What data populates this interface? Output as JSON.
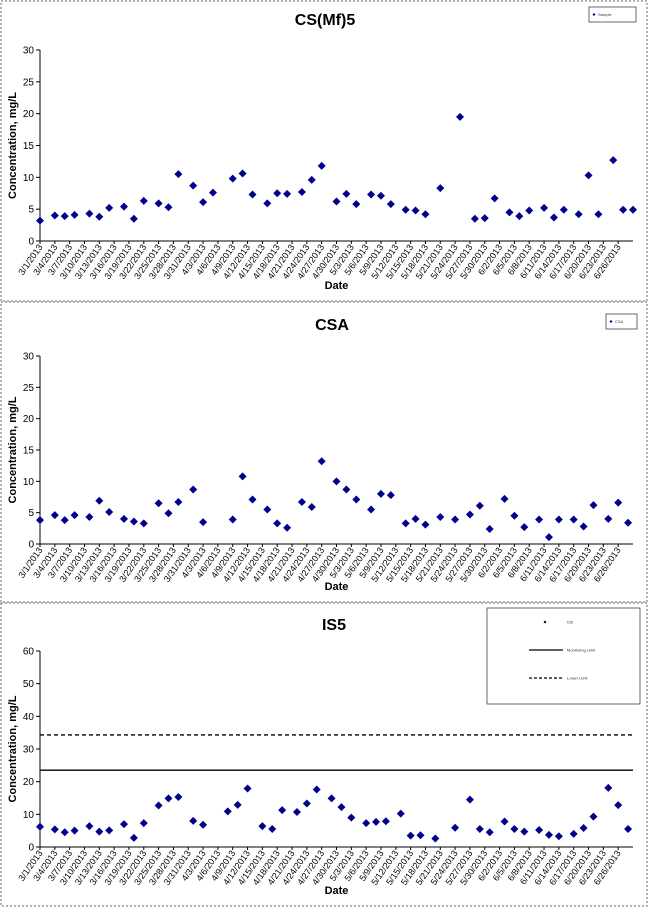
{
  "chart_data": [
    {
      "type": "scatter",
      "title": "CS(Mf)5",
      "ylabel": "Concentration, mg/L",
      "xlabel": "Date",
      "ylim": [
        0,
        30
      ],
      "yticks": [
        0,
        5,
        10,
        15,
        20,
        25,
        30
      ],
      "legend": {
        "placement": "top-right",
        "entries": [
          "Sample"
        ]
      },
      "marker_color": "#00008B",
      "x": [
        "3/1/2013",
        "3/4/2013",
        "3/6/2013",
        "3/8/2013",
        "3/11/2013",
        "3/13/2013",
        "3/15/2013",
        "3/18/2013",
        "3/20/2013",
        "3/22/2013",
        "3/25/2013",
        "3/27/2013",
        "3/29/2013",
        "4/1/2013",
        "4/3/2013",
        "4/5/2013",
        "4/9/2013",
        "4/11/2013",
        "4/13/2013",
        "4/16/2013",
        "4/18/2013",
        "4/20/2013",
        "4/23/2013",
        "4/25/2013",
        "4/27/2013",
        "4/30/2013",
        "5/2/2013",
        "5/4/2013",
        "5/7/2013",
        "5/9/2013",
        "5/11/2013",
        "5/14/2013",
        "5/16/2013",
        "5/18/2013",
        "5/21/2013",
        "5/25/2013",
        "5/28/2013",
        "5/30/2013",
        "6/1/2013",
        "6/4/2013",
        "6/6/2013",
        "6/8/2013",
        "6/11/2013",
        "6/13/2013",
        "6/15/2013",
        "6/18/2013",
        "6/20/2013",
        "6/22/2013",
        "6/25/2013",
        "6/27/2013",
        "6/29/2013"
      ],
      "y": [
        3.2,
        4.0,
        3.9,
        4.1,
        4.3,
        3.8,
        5.2,
        5.4,
        3.5,
        6.3,
        5.9,
        5.3,
        10.5,
        8.7,
        6.1,
        7.6,
        9.8,
        10.6,
        7.3,
        5.9,
        7.5,
        7.4,
        7.7,
        9.6,
        11.8,
        6.2,
        7.4,
        5.8,
        7.3,
        7.1,
        5.8,
        4.9,
        4.8,
        4.2,
        8.3,
        19.5,
        3.5,
        3.6,
        6.7,
        4.5,
        3.9,
        4.8,
        5.2,
        3.7,
        4.9,
        4.2,
        10.3,
        4.2,
        12.7,
        4.9,
        4.9
      ],
      "x_tick_labels": [
        "3/1/2013",
        "3/4/2013",
        "3/7/2013",
        "3/10/2013",
        "3/13/2013",
        "3/16/2013",
        "3/19/2013",
        "3/22/2013",
        "3/25/2013",
        "3/28/2013",
        "3/31/2013",
        "4/3/2013",
        "4/6/2013",
        "4/9/2013",
        "4/12/2013",
        "4/15/2013",
        "4/18/2013",
        "4/21/2013",
        "4/24/2013",
        "4/27/2013",
        "4/30/2013",
        "5/3/2013",
        "5/6/2013",
        "5/9/2013",
        "5/12/2013",
        "5/15/2013",
        "5/18/2013",
        "5/21/2013",
        "5/24/2013",
        "5/27/2013",
        "5/30/2013",
        "6/2/2013",
        "6/5/2013",
        "6/8/2013",
        "6/11/2013",
        "6/14/2013",
        "6/17/2013",
        "6/20/2013",
        "6/23/2013",
        "6/26/2013"
      ]
    },
    {
      "type": "scatter",
      "title": "CSA",
      "ylabel": "Concentration, mg/L",
      "xlabel": "Date",
      "ylim": [
        0,
        30
      ],
      "yticks": [
        0,
        5,
        10,
        15,
        20,
        25,
        30
      ],
      "legend": {
        "placement": "top-right",
        "entries": [
          "CSA"
        ]
      },
      "marker_color": "#00008B",
      "x": [
        "3/1/2013",
        "3/4/2013",
        "3/6/2013",
        "3/8/2013",
        "3/11/2013",
        "3/13/2013",
        "3/15/2013",
        "3/18/2013",
        "3/20/2013",
        "3/22/2013",
        "3/25/2013",
        "3/27/2013",
        "3/29/2013",
        "4/1/2013",
        "4/3/2013",
        "4/9/2013",
        "4/11/2013",
        "4/13/2013",
        "4/16/2013",
        "4/18/2013",
        "4/20/2013",
        "4/23/2013",
        "4/25/2013",
        "4/27/2013",
        "4/30/2013",
        "5/2/2013",
        "5/4/2013",
        "5/7/2013",
        "5/9/2013",
        "5/11/2013",
        "5/14/2013",
        "5/16/2013",
        "5/18/2013",
        "5/21/2013",
        "5/24/2013",
        "5/27/2013",
        "5/29/2013",
        "5/31/2013",
        "6/3/2013",
        "6/5/2013",
        "6/7/2013",
        "6/10/2013",
        "6/12/2013",
        "6/14/2013",
        "6/17/2013",
        "6/19/2013",
        "6/21/2013",
        "6/24/2013",
        "6/26/2013",
        "6/28/2013"
      ],
      "y": [
        3.8,
        4.6,
        3.8,
        4.6,
        4.3,
        6.9,
        5.1,
        4.0,
        3.6,
        3.3,
        6.5,
        4.9,
        6.7,
        8.7,
        3.5,
        3.9,
        10.8,
        7.1,
        5.5,
        3.3,
        2.6,
        6.7,
        5.9,
        13.2,
        10.0,
        8.7,
        7.1,
        5.5,
        8.0,
        7.8,
        3.3,
        4.0,
        3.1,
        4.3,
        3.9,
        4.7,
        6.1,
        2.4,
        7.2,
        4.5,
        2.7,
        3.9,
        1.1,
        3.9,
        3.9,
        2.8,
        6.2,
        4.0,
        6.6,
        3.4
      ],
      "x_tick_labels": [
        "3/1/2013",
        "3/4/2013",
        "3/7/2013",
        "3/10/2013",
        "3/13/2013",
        "3/16/2013",
        "3/19/2013",
        "3/22/2013",
        "3/25/2013",
        "3/28/2013",
        "3/31/2013",
        "4/3/2013",
        "4/6/2013",
        "4/9/2013",
        "4/12/2013",
        "4/15/2013",
        "4/18/2013",
        "4/21/2013",
        "4/24/2013",
        "4/27/2013",
        "4/30/2013",
        "5/3/2013",
        "5/6/2013",
        "5/9/2013",
        "5/12/2013",
        "5/15/2013",
        "5/18/2013",
        "5/21/2013",
        "5/24/2013",
        "5/27/2013",
        "5/30/2013",
        "6/2/2013",
        "6/5/2013",
        "6/8/2013",
        "6/11/2013",
        "6/14/2013",
        "6/17/2013",
        "6/20/2013",
        "6/23/2013",
        "6/26/2013"
      ]
    },
    {
      "type": "scatter",
      "title": "IS5",
      "ylabel": "Concentration, mg/L",
      "xlabel": "Date",
      "ylim": [
        0,
        60
      ],
      "yticks": [
        0,
        10,
        20,
        30,
        40,
        50,
        60
      ],
      "legend": {
        "placement": "top-right",
        "entries": [
          "IS5",
          "Monitoring Limit",
          "Lower Limit"
        ]
      },
      "marker_color": "#00008B",
      "reference_lines": [
        {
          "name": "Monitoring Limit",
          "value": 23.5,
          "style": "solid"
        },
        {
          "name": "Lower Limit",
          "value": 34.3,
          "style": "dashed"
        }
      ],
      "x": [
        "3/1/2013",
        "3/4/2013",
        "3/6/2013",
        "3/8/2013",
        "3/11/2013",
        "3/13/2013",
        "3/15/2013",
        "3/18/2013",
        "3/20/2013",
        "3/22/2013",
        "3/25/2013",
        "3/27/2013",
        "3/29/2013",
        "4/1/2013",
        "4/3/2013",
        "4/8/2013",
        "4/10/2013",
        "4/12/2013",
        "4/15/2013",
        "4/17/2013",
        "4/19/2013",
        "4/22/2013",
        "4/24/2013",
        "4/26/2013",
        "4/29/2013",
        "5/1/2013",
        "5/3/2013",
        "5/6/2013",
        "5/8/2013",
        "5/10/2013",
        "5/13/2013",
        "5/15/2013",
        "5/17/2013",
        "5/20/2013",
        "5/24/2013",
        "5/27/2013",
        "5/29/2013",
        "5/31/2013",
        "6/3/2013",
        "6/5/2013",
        "6/7/2013",
        "6/10/2013",
        "6/12/2013",
        "6/14/2013",
        "6/17/2013",
        "6/19/2013",
        "6/21/2013",
        "6/24/2013",
        "6/26/2013",
        "6/28/2013"
      ],
      "y": [
        6.2,
        5.4,
        4.5,
        5.0,
        6.4,
        4.7,
        5.1,
        7.0,
        2.8,
        7.3,
        12.7,
        14.9,
        15.3,
        8.0,
        6.8,
        10.9,
        12.9,
        17.9,
        6.4,
        5.5,
        11.3,
        10.7,
        13.3,
        17.6,
        14.9,
        12.2,
        9.0,
        7.3,
        7.7,
        7.9,
        10.2,
        3.5,
        3.6,
        2.6,
        5.9,
        14.5,
        5.5,
        4.5,
        7.8,
        5.5,
        4.7,
        5.2,
        3.7,
        3.3,
        4.0,
        5.8,
        9.3,
        18.1,
        12.8,
        5.5
      ],
      "x_tick_labels": [
        "3/1/2013",
        "3/4/2013",
        "3/7/2013",
        "3/10/2013",
        "3/13/2013",
        "3/16/2013",
        "3/19/2013",
        "3/22/2013",
        "3/25/2013",
        "3/28/2013",
        "3/31/2013",
        "4/3/2013",
        "4/6/2013",
        "4/9/2013",
        "4/12/2013",
        "4/15/2013",
        "4/18/2013",
        "4/21/2013",
        "4/24/2013",
        "4/27/2013",
        "4/30/2013",
        "5/3/2013",
        "5/6/2013",
        "5/9/2013",
        "5/12/2013",
        "5/15/2013",
        "5/18/2013",
        "5/21/2013",
        "5/24/2013",
        "5/27/2013",
        "5/30/2013",
        "6/2/2013",
        "6/5/2013",
        "6/8/2013",
        "6/11/2013",
        "6/14/2013",
        "6/17/2013",
        "6/20/2013",
        "6/23/2013",
        "6/26/2013"
      ]
    }
  ]
}
